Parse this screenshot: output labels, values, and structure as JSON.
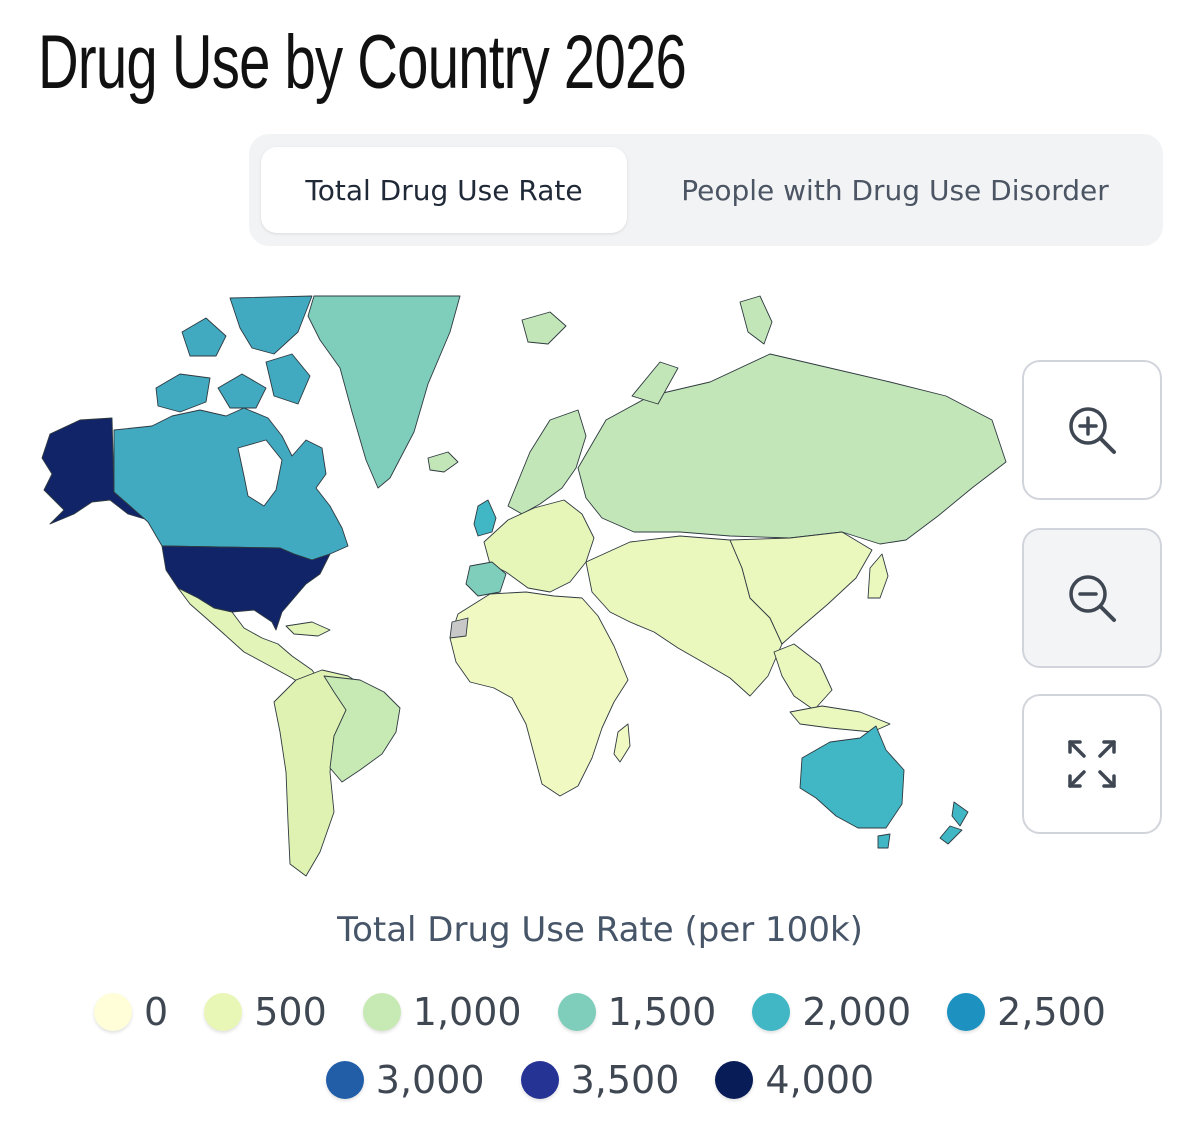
{
  "title": "Drug Use by Country 2026",
  "tabs": [
    {
      "label": "Total Drug Use Rate",
      "active": true
    },
    {
      "label": "People with Drug Use Disorder",
      "active": false
    }
  ],
  "map": {
    "colors": {
      "usa": "#112468",
      "alaska": "#112468",
      "canada": "#41a9c0",
      "canada_islands": "#41a9c0",
      "greenland": "#7fcdbb",
      "australia": "#41b6c4",
      "new_zealand": "#41b6c4",
      "uk": "#41b6c4",
      "spain": "#7fcdbb",
      "russia": "#c2e6b8",
      "scandinavia": "#c2e6b8",
      "brazil": "#c7e9b4",
      "south_america_rest": "#dff2b2",
      "europe": "#e6f5b8",
      "africa": "#f1f9c2",
      "asia_middle": "#eaf7bd",
      "china": "#eaf7bd",
      "mexico_central": "#e2f4b7",
      "unknown": "#c8c8c8"
    }
  },
  "controls": {
    "zoom_in": "zoom-in-icon",
    "zoom_out": "zoom-out-icon",
    "fullscreen": "fullscreen-icon"
  },
  "legend": {
    "title": "Total Drug Use Rate (per 100k)",
    "items": [
      {
        "label": "0",
        "color": "#fffed9"
      },
      {
        "label": "500",
        "color": "#e9f7b6"
      },
      {
        "label": "1,000",
        "color": "#c7e9b4"
      },
      {
        "label": "1,500",
        "color": "#7fcdbb"
      },
      {
        "label": "2,000",
        "color": "#41b6c4"
      },
      {
        "label": "2,500",
        "color": "#1d91c0"
      },
      {
        "label": "3,000",
        "color": "#225ea8"
      },
      {
        "label": "3,500",
        "color": "#253494"
      },
      {
        "label": "4,000",
        "color": "#081d58"
      }
    ]
  }
}
